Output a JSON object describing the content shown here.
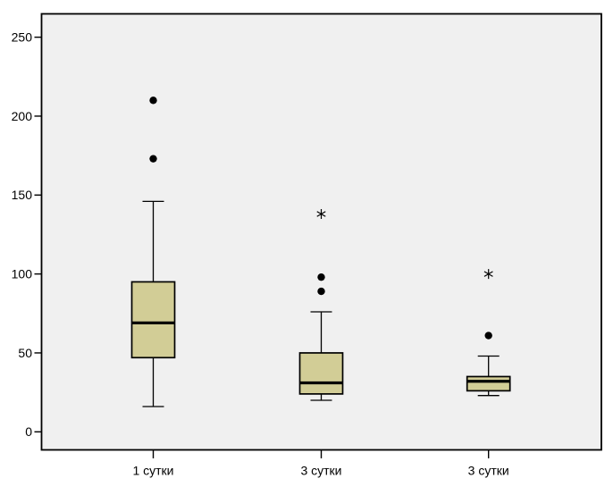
{
  "chart_data": {
    "type": "boxplot",
    "title": "",
    "xlabel": "",
    "ylabel": "",
    "legend": "none",
    "grid": false,
    "colors": {
      "outer_background": "#ffffff",
      "plot_background": "#f0f0f0",
      "box_fill": "#d2cd96",
      "line": "#000000"
    },
    "y_axis": {
      "min": 0,
      "max": 262,
      "ticks": [
        0,
        50,
        100,
        150,
        200,
        250
      ]
    },
    "categories": [
      "1 сутки",
      "3 сутки",
      "3 сутки"
    ],
    "series": [
      {
        "category": "1 сутки",
        "whisker_low": 16,
        "q1": 47,
        "median": 69,
        "q3": 95,
        "whisker_high": 146,
        "outliers": [
          173,
          210
        ],
        "extremes": []
      },
      {
        "category": "3 сутки",
        "whisker_low": 20,
        "q1": 24,
        "median": 31,
        "q3": 50,
        "whisker_high": 76,
        "outliers": [
          89,
          98
        ],
        "extremes": [
          138
        ]
      },
      {
        "category": "3 сутки",
        "whisker_low": 23,
        "q1": 26,
        "median": 32,
        "q3": 35,
        "whisker_high": 48,
        "outliers": [
          61
        ],
        "extremes": [
          100
        ]
      }
    ]
  }
}
